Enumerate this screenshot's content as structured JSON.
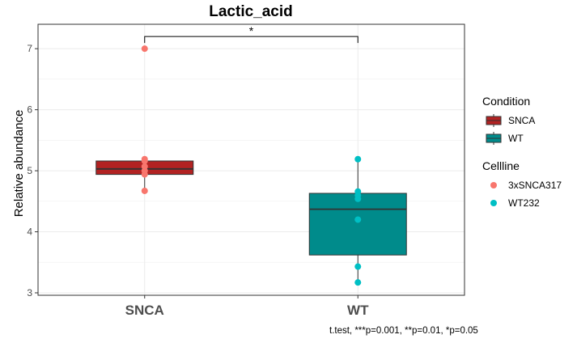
{
  "chart_data": {
    "type": "box",
    "title": "Lactic_acid",
    "ylabel": "Relative abundance",
    "xlabel": "",
    "categories": [
      "SNCA",
      "WT"
    ],
    "ylim": [
      2.96,
      7.4
    ],
    "yticks": [
      3,
      4,
      5,
      6,
      7
    ],
    "grid": true,
    "legend_position": "right",
    "boxes": [
      {
        "category": "SNCA",
        "condition": "SNCA",
        "min": 4.67,
        "q1": 4.94,
        "median": 5.03,
        "q3": 5.16,
        "max": 5.19,
        "color": "#b22222"
      },
      {
        "category": "WT",
        "condition": "WT",
        "min": 3.17,
        "q1": 3.62,
        "median": 4.37,
        "q3": 4.63,
        "max": 5.19,
        "color": "#008b8b"
      }
    ],
    "points": [
      {
        "category": "SNCA",
        "cellline": "3xSNCA317",
        "y": 7.0
      },
      {
        "category": "SNCA",
        "cellline": "3xSNCA317",
        "y": 5.19
      },
      {
        "category": "SNCA",
        "cellline": "3xSNCA317",
        "y": 5.16
      },
      {
        "category": "SNCA",
        "cellline": "3xSNCA317",
        "y": 5.07
      },
      {
        "category": "SNCA",
        "cellline": "3xSNCA317",
        "y": 5.0
      },
      {
        "category": "SNCA",
        "cellline": "3xSNCA317",
        "y": 4.94
      },
      {
        "category": "SNCA",
        "cellline": "3xSNCA317",
        "y": 4.67
      },
      {
        "category": "WT",
        "cellline": "WT232",
        "y": 5.19
      },
      {
        "category": "WT",
        "cellline": "WT232",
        "y": 4.66
      },
      {
        "category": "WT",
        "cellline": "WT232",
        "y": 4.6
      },
      {
        "category": "WT",
        "cellline": "WT232",
        "y": 4.54
      },
      {
        "category": "WT",
        "cellline": "WT232",
        "y": 4.2
      },
      {
        "category": "WT",
        "cellline": "WT232",
        "y": 3.43
      },
      {
        "category": "WT",
        "cellline": "WT232",
        "y": 3.17
      }
    ],
    "significance": {
      "from": "SNCA",
      "to": "WT",
      "label": "*",
      "y": 7.2
    },
    "legends": [
      {
        "title": "Condition",
        "kind": "box",
        "items": [
          {
            "label": "SNCA",
            "color": "#b22222"
          },
          {
            "label": "WT",
            "color": "#008b8b"
          }
        ]
      },
      {
        "title": "Cellline",
        "kind": "point",
        "items": [
          {
            "label": "3xSNCA317",
            "color": "#f8766d"
          },
          {
            "label": "WT232",
            "color": "#00bfc4"
          }
        ]
      }
    ],
    "caption": "t.test, ***p=0.001, **p=0.01, *p=0.05"
  }
}
